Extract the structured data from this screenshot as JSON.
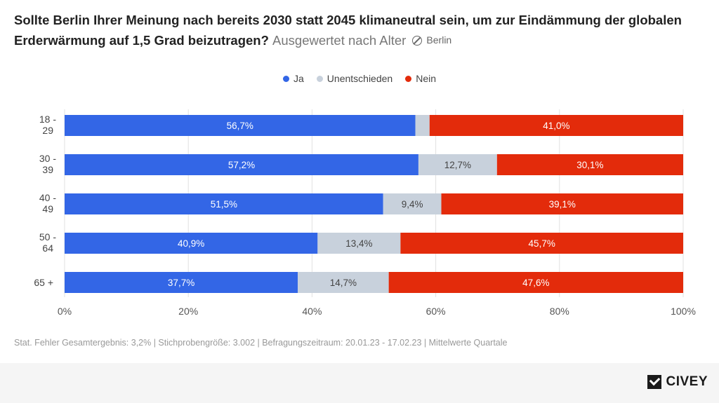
{
  "header": {
    "title": "Sollte Berlin Ihrer Meinung nach bereits 2030 statt 2045 klimaneutral sein, um zur Eindämmung der globalen Erderwärmung auf 1,5 Grad beizutragen?",
    "subtitle": "Ausgewertet nach Alter",
    "region": "Berlin"
  },
  "footer": {
    "note": "Stat. Fehler Gesamtergebnis: 3,2% | Stichprobengröße: 3.002 | Befragungszeitraum: 20.01.23 - 17.02.23 | Mittelwerte Quartale"
  },
  "brand": {
    "name": "CIVEY"
  },
  "chart_data": {
    "type": "bar",
    "orientation": "horizontal",
    "stacked": true,
    "categories": [
      "18 - 29",
      "30 - 39",
      "40 - 49",
      "50 - 64",
      "65 +"
    ],
    "series": [
      {
        "name": "Ja",
        "color": "#3366e6",
        "values": [
          56.7,
          57.2,
          51.5,
          40.9,
          37.7
        ],
        "labels": [
          "56,7%",
          "57,2%",
          "51,5%",
          "40,9%",
          "37,7%"
        ]
      },
      {
        "name": "Unentschieden",
        "color": "#c8d1dc",
        "values": [
          2.3,
          12.7,
          9.4,
          13.4,
          14.7
        ],
        "labels": [
          "",
          "12,7%",
          "9,4%",
          "13,4%",
          "14,7%"
        ]
      },
      {
        "name": "Nein",
        "color": "#e32b0b",
        "values": [
          41.0,
          30.1,
          39.1,
          45.7,
          47.6
        ],
        "labels": [
          "41,0%",
          "30,1%",
          "39,1%",
          "45,7%",
          "47,6%"
        ]
      }
    ],
    "xlim": [
      0,
      100
    ],
    "xticks": [
      "0%",
      "20%",
      "40%",
      "60%",
      "80%",
      "100%"
    ],
    "legend_position": "top-center",
    "grid": true
  }
}
